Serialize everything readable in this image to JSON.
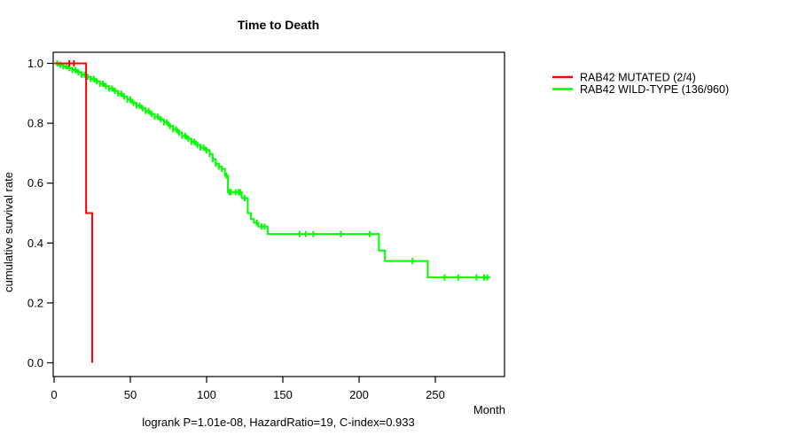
{
  "title": "Time to Death",
  "caption": "logrank P=1.01e-08, HazardRatio=19, C-index=0.933",
  "chart_data": {
    "type": "line",
    "subtype": "kaplan-meier-step-curve",
    "title": "Time to Death",
    "xlabel": "Month",
    "ylabel": "cumulative survival rate",
    "xlim": [
      0,
      295
    ],
    "ylim": [
      0.0,
      1.0
    ],
    "x_ticks": [
      0,
      50,
      100,
      150,
      200,
      250
    ],
    "y_ticks": [
      0.0,
      0.2,
      0.4,
      0.6,
      0.8,
      1.0
    ],
    "grid": false,
    "legend_position": "right-outside",
    "series": [
      {
        "name": "RAB42 MUTATED (2/4)",
        "color": "#FF0000",
        "steps": [
          [
            0,
            1.0
          ],
          [
            21,
            0.5
          ],
          [
            25,
            0.0
          ]
        ],
        "end_month": 25,
        "censor_months": [
          10,
          13
        ]
      },
      {
        "name": "RAB42 WILD-TYPE (136/960)",
        "color": "#00FF00",
        "steps": [
          [
            0,
            1.0
          ],
          [
            3,
            0.995
          ],
          [
            6,
            0.99
          ],
          [
            9,
            0.984
          ],
          [
            12,
            0.978
          ],
          [
            15,
            0.97
          ],
          [
            18,
            0.962
          ],
          [
            21,
            0.955
          ],
          [
            24,
            0.948
          ],
          [
            27,
            0.94
          ],
          [
            30,
            0.932
          ],
          [
            33,
            0.924
          ],
          [
            36,
            0.916
          ],
          [
            39,
            0.908
          ],
          [
            42,
            0.899
          ],
          [
            45,
            0.889
          ],
          [
            48,
            0.879
          ],
          [
            51,
            0.868
          ],
          [
            54,
            0.859
          ],
          [
            57,
            0.85
          ],
          [
            60,
            0.841
          ],
          [
            63,
            0.831
          ],
          [
            66,
            0.822
          ],
          [
            69,
            0.813
          ],
          [
            72,
            0.803
          ],
          [
            75,
            0.791
          ],
          [
            78,
            0.78
          ],
          [
            81,
            0.769
          ],
          [
            84,
            0.758
          ],
          [
            87,
            0.748
          ],
          [
            90,
            0.738
          ],
          [
            93,
            0.728
          ],
          [
            96,
            0.719
          ],
          [
            99,
            0.71
          ],
          [
            102,
            0.697
          ],
          [
            104,
            0.68
          ],
          [
            106,
            0.665
          ],
          [
            108,
            0.655
          ],
          [
            110,
            0.648
          ],
          [
            112,
            0.625
          ],
          [
            114,
            0.57
          ],
          [
            123,
            0.55
          ],
          [
            127,
            0.5
          ],
          [
            129,
            0.48
          ],
          [
            131,
            0.468
          ],
          [
            134,
            0.455
          ],
          [
            140,
            0.43
          ],
          [
            213,
            0.375
          ],
          [
            217,
            0.34
          ],
          [
            245,
            0.285
          ]
        ],
        "end_month": 286,
        "censor_months": [
          2,
          4,
          6,
          8,
          10,
          12,
          14,
          16,
          18,
          20,
          22,
          24,
          26,
          28,
          30,
          32,
          34,
          36,
          38,
          40,
          42,
          44,
          46,
          48,
          50,
          52,
          54,
          56,
          58,
          60,
          62,
          64,
          66,
          68,
          70,
          72,
          74,
          76,
          78,
          80,
          82,
          84,
          86,
          88,
          90,
          92,
          94,
          96,
          98,
          100,
          102,
          104,
          106,
          108,
          110,
          113,
          115,
          116,
          119,
          121,
          122,
          125,
          133,
          136,
          138,
          161,
          165,
          170,
          188,
          207,
          235,
          256,
          265,
          277,
          282,
          284
        ]
      }
    ]
  }
}
